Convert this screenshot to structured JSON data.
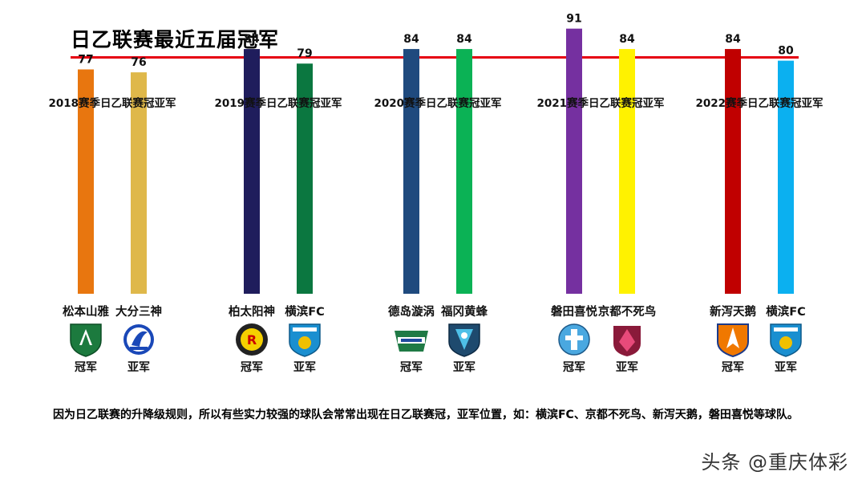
{
  "header": {
    "title": "日乙联赛最近五届冠军"
  },
  "note": "因为日乙联赛的升降级规则，所以有些实力较强的球队会常常出现在日乙联赛冠，亚军位置，如：横滨FC、京都不死鸟、新泻天鹅，磐田喜悦等球队。",
  "watermark": "头条 @重庆体彩",
  "chart_data": {
    "type": "bar",
    "xlabel": "",
    "ylabel": "",
    "grid": false,
    "legend": "none",
    "groups": [
      {
        "title": "2018赛季日乙联赛冠亚军",
        "bars": [
          {
            "team": "松本山雅",
            "value": 77,
            "rank": "冠军",
            "color": "#e8760f",
            "crest": "matsumoto"
          },
          {
            "team": "大分三神",
            "value": 76,
            "rank": "亚军",
            "color": "#dfb84a",
            "crest": "oita"
          }
        ]
      },
      {
        "title": "2019赛季日乙联赛冠亚军",
        "bars": [
          {
            "team": "柏太阳神",
            "value": 84,
            "rank": "冠军",
            "color": "#1f1d5c",
            "crest": "kashiwa"
          },
          {
            "team": "横滨FC",
            "value": 79,
            "rank": "亚军",
            "color": "#0b7740",
            "crest": "yokohama"
          }
        ]
      },
      {
        "title": "2020赛季日乙联赛冠亚军",
        "bars": [
          {
            "team": "德岛漩涡",
            "value": 84,
            "rank": "冠军",
            "color": "#1f4a7e",
            "crest": "tokushima"
          },
          {
            "team": "福冈黄蜂",
            "value": 84,
            "rank": "亚军",
            "color": "#0bb255",
            "crest": "fukuoka"
          }
        ]
      },
      {
        "title": "2021赛季日乙联赛冠亚军",
        "bars": [
          {
            "team": "磐田喜悦",
            "value": 91,
            "rank": "冠军",
            "color": "#7530a0",
            "crest": "iwata"
          },
          {
            "team": "京都不死鸟",
            "value": 84,
            "rank": "亚军",
            "color": "#fff200",
            "crest": "kyoto"
          }
        ]
      },
      {
        "title": "2022赛季日乙联赛冠亚军",
        "bars": [
          {
            "team": "新泻天鹅",
            "value": 84,
            "rank": "冠军",
            "color": "#c00000",
            "crest": "niigata"
          },
          {
            "team": "横滨FC",
            "value": 80,
            "rank": "亚军",
            "color": "#0bb0f0",
            "crest": "yokohama"
          }
        ]
      }
    ]
  }
}
